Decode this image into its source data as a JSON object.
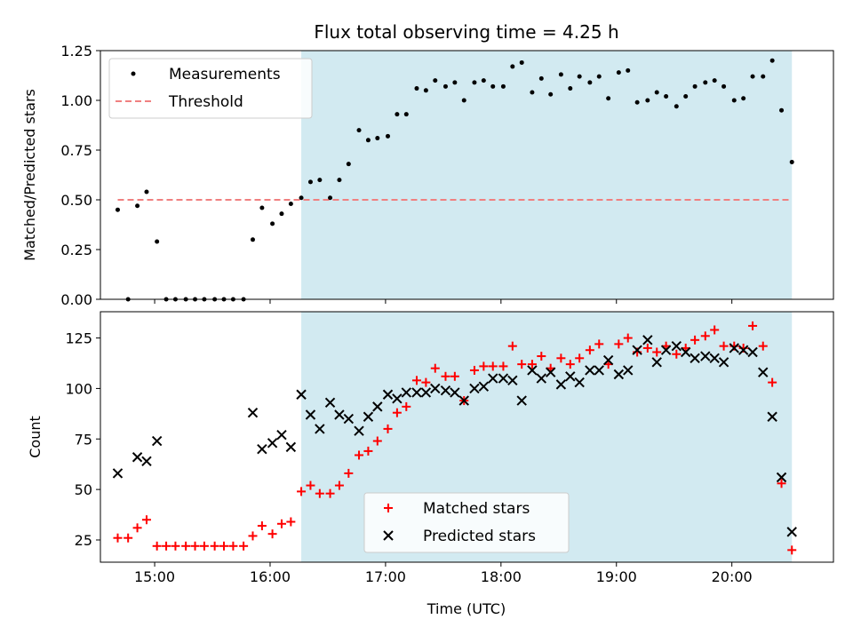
{
  "chart_data": [
    {
      "type": "scatter",
      "title": "Flux total observing time = 4.25 h",
      "xlabel": "",
      "ylabel": "Matched/Predicted stars",
      "xlim": [
        14.53,
        20.88
      ],
      "ylim": [
        0,
        1.25
      ],
      "xticks": [
        15,
        16,
        17,
        18,
        19,
        20
      ],
      "yticks": [
        0,
        0.25,
        0.5,
        0.75,
        1.0,
        1.25
      ],
      "ytick_labels": [
        "0.00",
        "0.25",
        "0.50",
        "0.75",
        "1.00",
        "1.25"
      ],
      "shaded_span": [
        16.27,
        20.52
      ],
      "shade_color": "#add8e6",
      "legend": {
        "position": "top-left",
        "entries": [
          {
            "label": "Measurements",
            "marker": "dot",
            "color": "#000000"
          },
          {
            "label": "Threshold",
            "marker": "dashed-line",
            "color": "#f08080"
          }
        ]
      },
      "threshold": {
        "value": 0.5,
        "x": [
          14.68,
          20.52
        ]
      },
      "series": [
        {
          "name": "Measurements",
          "color": "#000000",
          "x": [
            14.68,
            14.77,
            14.85,
            14.93,
            15.02,
            15.1,
            15.18,
            15.27,
            15.35,
            15.43,
            15.52,
            15.6,
            15.68,
            15.77,
            15.85,
            15.93,
            16.02,
            16.1,
            16.18,
            16.27,
            16.35,
            16.43,
            16.52,
            16.6,
            16.68,
            16.77,
            16.85,
            16.93,
            17.02,
            17.1,
            17.18,
            17.27,
            17.35,
            17.43,
            17.52,
            17.6,
            17.68,
            17.77,
            17.85,
            17.93,
            18.02,
            18.1,
            18.18,
            18.27,
            18.35,
            18.43,
            18.52,
            18.6,
            18.68,
            18.77,
            18.85,
            18.93,
            19.02,
            19.1,
            19.18,
            19.27,
            19.35,
            19.43,
            19.52,
            19.6,
            19.68,
            19.77,
            19.85,
            19.93,
            20.02,
            20.1,
            20.18,
            20.27,
            20.35,
            20.43,
            20.52
          ],
          "y": [
            0.45,
            0.0,
            0.47,
            0.54,
            0.29,
            0.0,
            0.0,
            0.0,
            0.0,
            0.0,
            0.0,
            0.0,
            0.0,
            0.0,
            0.3,
            0.46,
            0.38,
            0.43,
            0.48,
            0.51,
            0.59,
            0.6,
            0.51,
            0.6,
            0.68,
            0.85,
            0.8,
            0.81,
            0.82,
            0.93,
            0.93,
            1.06,
            1.05,
            1.1,
            1.07,
            1.09,
            1.0,
            1.09,
            1.1,
            1.07,
            1.07,
            1.17,
            1.19,
            1.04,
            1.11,
            1.03,
            1.13,
            1.06,
            1.12,
            1.09,
            1.12,
            1.01,
            1.14,
            1.15,
            0.99,
            1.0,
            1.04,
            1.02,
            0.97,
            1.02,
            1.07,
            1.09,
            1.1,
            1.07,
            1.0,
            1.01,
            1.12,
            1.12,
            1.2,
            0.95,
            0.69
          ]
        }
      ]
    },
    {
      "type": "scatter",
      "title": "",
      "xlabel": "Time (UTC)",
      "ylabel": "Count",
      "xlim": [
        14.53,
        20.88
      ],
      "ylim": [
        14,
        138
      ],
      "xticks": [
        15,
        16,
        17,
        18,
        19,
        20
      ],
      "xtick_labels": [
        "15:00",
        "16:00",
        "17:00",
        "18:00",
        "19:00",
        "20:00"
      ],
      "yticks": [
        25,
        50,
        75,
        100,
        125
      ],
      "ytick_labels": [
        "25",
        "50",
        "75",
        "100",
        "125"
      ],
      "shaded_span": [
        16.27,
        20.52
      ],
      "shade_color": "#add8e6",
      "legend": {
        "position": "lower-center",
        "entries": [
          {
            "label": "Matched stars",
            "marker": "plus",
            "color": "#ff0000"
          },
          {
            "label": "Predicted stars",
            "marker": "x",
            "color": "#000000"
          }
        ]
      },
      "series": [
        {
          "name": "Matched stars",
          "marker": "plus",
          "color": "#ff0000",
          "x": [
            14.68,
            14.77,
            14.85,
            14.93,
            15.02,
            15.1,
            15.18,
            15.27,
            15.35,
            15.43,
            15.52,
            15.6,
            15.68,
            15.77,
            15.85,
            15.93,
            16.02,
            16.1,
            16.18,
            16.27,
            16.35,
            16.43,
            16.52,
            16.6,
            16.68,
            16.77,
            16.85,
            16.93,
            17.02,
            17.1,
            17.18,
            17.27,
            17.35,
            17.43,
            17.52,
            17.6,
            17.68,
            17.77,
            17.85,
            17.93,
            18.02,
            18.1,
            18.18,
            18.27,
            18.35,
            18.43,
            18.52,
            18.6,
            18.68,
            18.77,
            18.85,
            18.93,
            19.02,
            19.1,
            19.18,
            19.27,
            19.35,
            19.43,
            19.52,
            19.6,
            19.68,
            19.77,
            19.85,
            19.93,
            20.02,
            20.1,
            20.18,
            20.27,
            20.35,
            20.43,
            20.52
          ],
          "y": [
            26,
            26,
            31,
            35,
            22,
            22,
            22,
            22,
            22,
            22,
            22,
            22,
            22,
            22,
            27,
            32,
            28,
            33,
            34,
            49,
            52,
            48,
            48,
            52,
            58,
            67,
            69,
            74,
            80,
            88,
            91,
            104,
            103,
            110,
            106,
            106,
            94,
            109,
            111,
            111,
            111,
            121,
            112,
            112,
            116,
            110,
            115,
            112,
            115,
            119,
            122,
            112,
            122,
            125,
            118,
            120,
            118,
            121,
            117,
            120,
            124,
            126,
            129,
            121,
            121,
            120,
            131,
            121,
            103,
            53,
            20
          ]
        },
        {
          "name": "Predicted stars",
          "marker": "x",
          "color": "#000000",
          "x": [
            14.68,
            14.77,
            14.85,
            14.93,
            15.02,
            15.1,
            15.18,
            15.27,
            15.35,
            15.43,
            15.52,
            15.6,
            15.68,
            15.77,
            15.85,
            15.93,
            16.02,
            16.1,
            16.18,
            16.27,
            16.35,
            16.43,
            16.52,
            16.6,
            16.68,
            16.77,
            16.85,
            16.93,
            17.02,
            17.1,
            17.18,
            17.27,
            17.35,
            17.43,
            17.52,
            17.6,
            17.68,
            17.77,
            17.85,
            17.93,
            18.02,
            18.1,
            18.18,
            18.27,
            18.35,
            18.43,
            18.52,
            18.6,
            18.68,
            18.77,
            18.85,
            18.93,
            19.02,
            19.1,
            19.18,
            19.27,
            19.35,
            19.43,
            19.52,
            19.6,
            19.68,
            19.77,
            19.85,
            19.93,
            20.02,
            20.1,
            20.18,
            20.27,
            20.35,
            20.43,
            20.52
          ],
          "y": [
            58,
            null,
            66,
            64,
            74,
            null,
            null,
            null,
            null,
            null,
            null,
            null,
            null,
            null,
            88,
            70,
            73,
            77,
            71,
            97,
            87,
            80,
            93,
            87,
            85,
            79,
            86,
            91,
            97,
            95,
            98,
            98,
            98,
            100,
            99,
            98,
            94,
            100,
            101,
            105,
            105,
            104,
            94,
            109,
            105,
            108,
            102,
            106,
            103,
            109,
            109,
            114,
            107,
            109,
            119,
            124,
            113,
            119,
            121,
            118,
            115,
            116,
            115,
            113,
            120,
            119,
            118,
            108,
            86,
            56,
            29
          ]
        }
      ]
    }
  ]
}
